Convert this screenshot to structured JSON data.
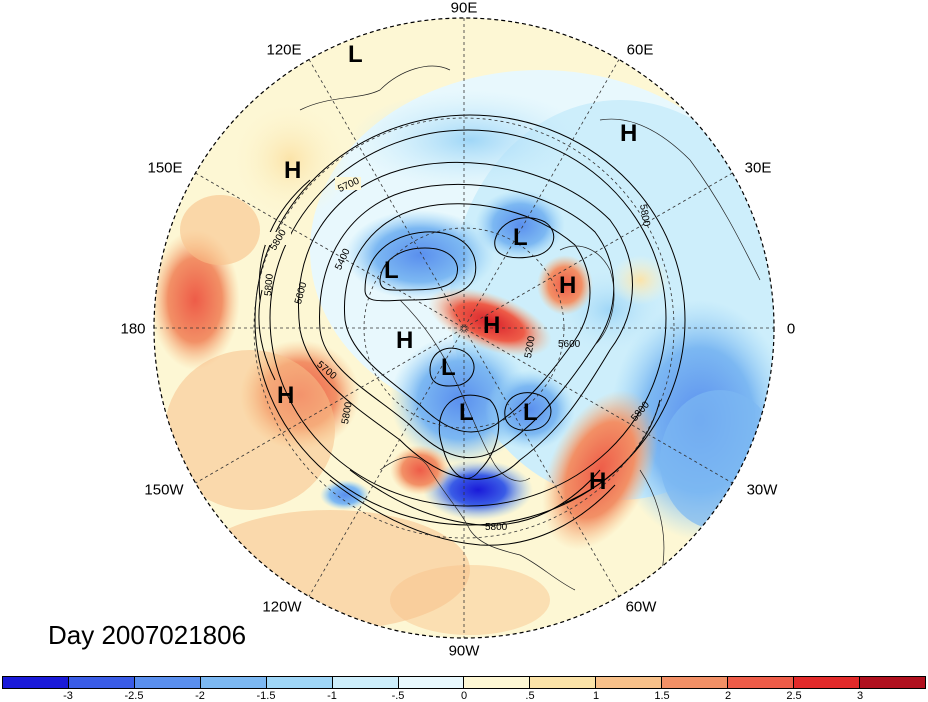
{
  "map": {
    "day_label": "Day 2007021806",
    "longitude_labels": [
      "90E",
      "60E",
      "30E",
      "0",
      "30W",
      "60W",
      "90W",
      "120W",
      "150W",
      "180",
      "150E",
      "120E"
    ],
    "pressure_centers": [
      {
        "label": "L"
      },
      {
        "label": "H"
      },
      {
        "label": "H"
      },
      {
        "label": "L"
      },
      {
        "label": "L"
      },
      {
        "label": "H"
      },
      {
        "label": "H"
      },
      {
        "label": "H"
      },
      {
        "label": "L"
      },
      {
        "label": "H"
      },
      {
        "label": "L"
      },
      {
        "label": "L"
      },
      {
        "label": "H"
      }
    ],
    "contour_labels": [
      "5700",
      "5800",
      "5400",
      "5600",
      "5800",
      "5700",
      "5800",
      "5800",
      "5800",
      "5200",
      "5600",
      "5800"
    ]
  },
  "colorbar": {
    "ticks": [
      "-3",
      "-2.5",
      "-2",
      "-1.5",
      "-1",
      "-.5",
      "0",
      ".5",
      "1",
      "1.5",
      "2",
      "2.5",
      "3"
    ],
    "colors": [
      "#1a1ad9",
      "#3a5ce6",
      "#5a8fee",
      "#7cb8f2",
      "#9fd6f7",
      "#cdeefb",
      "#e8f8fd",
      "#fdf7d4",
      "#fbe3a8",
      "#f8c18a",
      "#f29066",
      "#ee5c48",
      "#e22a2a",
      "#b0101e"
    ]
  }
}
